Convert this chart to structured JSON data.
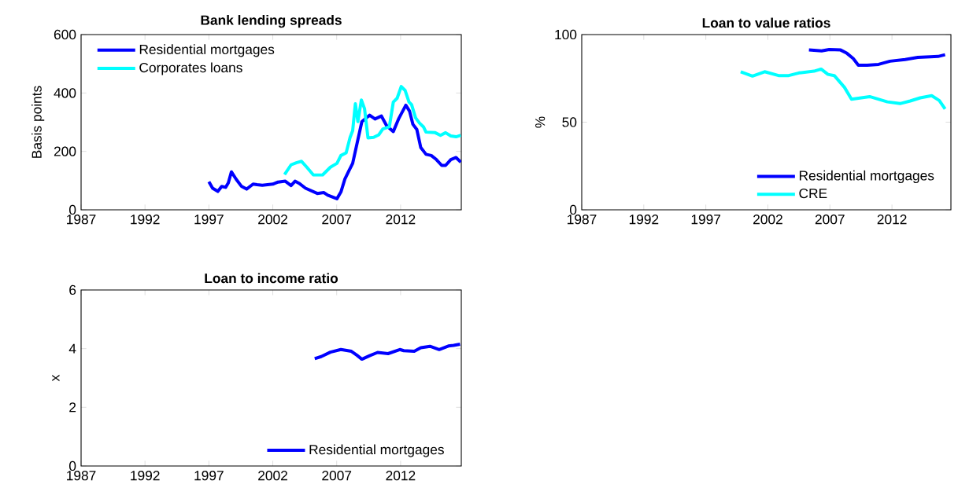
{
  "chart_data": [
    {
      "type": "line",
      "title": "Bank lending spreads",
      "ylabel": "Basis points",
      "xlim": [
        1987,
        2016.75
      ],
      "xticks": [
        1987,
        1992,
        1997,
        2002,
        2007,
        2012
      ],
      "ylim": [
        0,
        600
      ],
      "yticks": [
        0,
        200,
        400,
        600
      ],
      "legend": "top left",
      "grid": false,
      "series": [
        {
          "name": "Residential mortgages",
          "color": "#0000ff",
          "x": [
            1997.0,
            1997.29,
            1997.7,
            1998.0,
            1998.31,
            1998.52,
            1998.76,
            1999.13,
            1999.54,
            1999.95,
            2000.46,
            2000.77,
            2001.18,
            2002.0,
            2002.41,
            2002.98,
            2003.43,
            2003.74,
            2004.05,
            2004.56,
            2005.48,
            2006.0,
            2006.3,
            2007.02,
            2007.33,
            2007.64,
            2007.94,
            2008.25,
            2008.97,
            2009.58,
            2010.0,
            2010.5,
            2010.91,
            2011.43,
            2011.84,
            2012.41,
            2012.7,
            2012.96,
            2013.27,
            2013.58,
            2013.99,
            2014.4,
            2014.8,
            2015.22,
            2015.52,
            2015.93,
            2016.34,
            2016.71
          ],
          "values": [
            96,
            74,
            63,
            80,
            77,
            92,
            130,
            105,
            81,
            71,
            88,
            86,
            84,
            88,
            95,
            98,
            83,
            98,
            91,
            74,
            56,
            59,
            50,
            38,
            61,
            105,
            132,
            159,
            302,
            324,
            311,
            321,
            288,
            268,
            311,
            358,
            338,
            293,
            275,
            213,
            190,
            186,
            172,
            152,
            152,
            172,
            179,
            163
          ]
        },
        {
          "name": "Corporates loans",
          "color": "#00ffff",
          "x": [
            2002.92,
            2003.43,
            2003.84,
            2004.25,
            2004.66,
            2005.18,
            2005.89,
            2006.51,
            2007.02,
            2007.33,
            2007.74,
            2008.05,
            2008.25,
            2008.46,
            2008.66,
            2008.93,
            2009.18,
            2009.45,
            2009.89,
            2010.3,
            2010.61,
            2011.12,
            2011.43,
            2011.73,
            2012.05,
            2012.35,
            2012.66,
            2012.86,
            2013.17,
            2013.48,
            2013.79,
            2013.99,
            2014.71,
            2015.12,
            2015.52,
            2015.93,
            2016.34,
            2016.71
          ],
          "values": [
            121,
            154,
            161,
            166,
            146,
            119,
            119,
            146,
            159,
            186,
            195,
            248,
            271,
            363,
            302,
            376,
            346,
            246,
            248,
            257,
            277,
            284,
            369,
            382,
            422,
            409,
            369,
            360,
            315,
            297,
            284,
            266,
            264,
            255,
            264,
            253,
            250,
            255
          ]
        }
      ]
    },
    {
      "type": "line",
      "title": "Loan to value ratios",
      "ylabel": "%",
      "xlim": [
        1987,
        2016.75
      ],
      "xticks": [
        1987,
        1992,
        1997,
        2002,
        2007,
        2012
      ],
      "ylim": [
        0,
        100
      ],
      "yticks": [
        0,
        50,
        100
      ],
      "legend": "bottom right",
      "grid": false,
      "series": [
        {
          "name": "Residential mortgages",
          "color": "#0000ff",
          "x": [
            2005.31,
            2006.33,
            2006.94,
            2007.86,
            2008.37,
            2008.88,
            2009.29,
            2010.0,
            2010.92,
            2011.84,
            2013.06,
            2014.08,
            2015.1,
            2015.71,
            2016.28
          ],
          "values": [
            91.2,
            90.7,
            91.5,
            91.2,
            89.3,
            86.3,
            82.5,
            82.5,
            83.0,
            84.8,
            85.8,
            87.0,
            87.3,
            87.5,
            88.5
          ]
        },
        {
          "name": "CRE",
          "color": "#00ffff",
          "x": [
            1999.81,
            2000.76,
            2001.74,
            2002.86,
            2003.68,
            2004.5,
            2005.72,
            2006.29,
            2006.84,
            2007.35,
            2008.17,
            2008.74,
            2010.2,
            2011.63,
            2012.65,
            2013.47,
            2014.28,
            2015.2,
            2015.81,
            2016.28
          ],
          "values": [
            78.8,
            76.3,
            78.8,
            76.6,
            76.6,
            78.1,
            79.1,
            80.3,
            77.3,
            76.6,
            69.9,
            63.1,
            64.6,
            61.6,
            60.6,
            62.1,
            63.9,
            65.1,
            62.4,
            57.6
          ]
        }
      ]
    },
    {
      "type": "line",
      "title": "Loan to income ratio",
      "ylabel": "x",
      "xlim": [
        1987,
        2016.75
      ],
      "xticks": [
        1987,
        1992,
        1997,
        2002,
        2007,
        2012
      ],
      "ylim": [
        0,
        6
      ],
      "yticks": [
        0,
        2,
        4,
        6
      ],
      "legend": "bottom right",
      "grid": false,
      "series": [
        {
          "name": "Residential mortgages",
          "color": "#0000ff",
          "x": [
            2005.28,
            2005.79,
            2006.51,
            2007.33,
            2008.15,
            2008.57,
            2008.97,
            2009.58,
            2010.2,
            2011.02,
            2011.94,
            2012.25,
            2013.07,
            2013.58,
            2014.3,
            2015.02,
            2015.74,
            2016.15,
            2016.65
          ],
          "values": [
            3.66,
            3.73,
            3.88,
            3.97,
            3.91,
            3.78,
            3.64,
            3.76,
            3.87,
            3.83,
            3.97,
            3.93,
            3.91,
            4.03,
            4.08,
            3.97,
            4.09,
            4.11,
            4.15
          ]
        }
      ]
    }
  ]
}
